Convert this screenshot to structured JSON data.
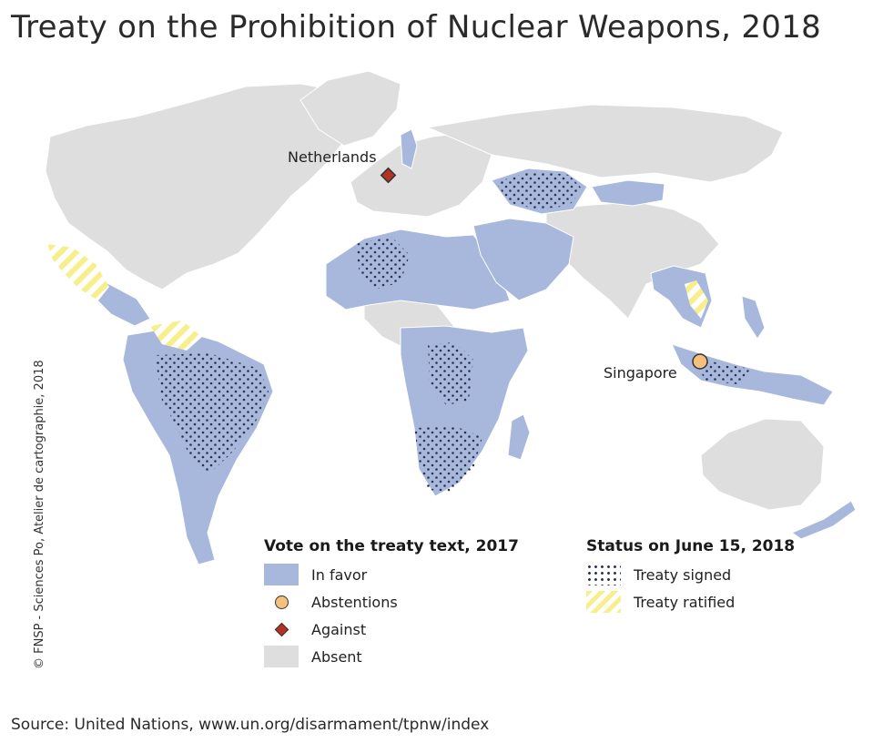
{
  "title": "Treaty on the Prohibition of Nuclear Weapons, 2018",
  "credit": "© FNSP - Sciences Po, Atelier de cartographie, 2018",
  "callouts": {
    "netherlands": "Netherlands",
    "singapore": "Singapore"
  },
  "legend_vote": {
    "title": "Vote on the treaty text, 2017",
    "items": [
      {
        "label": "In favor",
        "symbol": "blue-fill",
        "color": "#a7b8dc"
      },
      {
        "label": "Abstentions",
        "symbol": "orange-circle",
        "color": "#f3c07e"
      },
      {
        "label": "Against",
        "symbol": "red-diamond",
        "color": "#b23326"
      },
      {
        "label": "Absent",
        "symbol": "grey-fill",
        "color": "#dedede"
      }
    ]
  },
  "legend_status": {
    "title": "Status on June 15, 2018",
    "items": [
      {
        "label": "Treaty signed",
        "symbol": "dot-pattern",
        "color": "#2c3350"
      },
      {
        "label": "Treaty ratified",
        "symbol": "yellow-hatch",
        "color": "#f7ef8c"
      }
    ]
  },
  "source": "Source: United Nations, www.un.org/disarmament/tpnw/index"
}
